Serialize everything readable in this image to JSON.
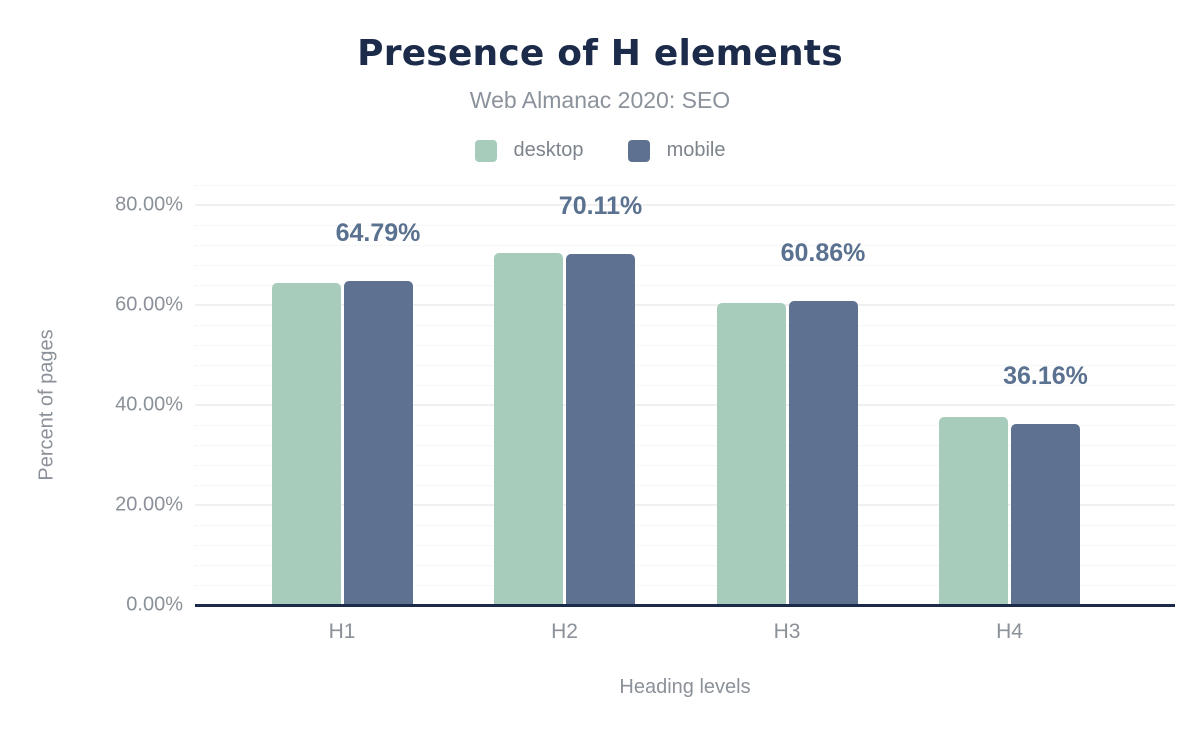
{
  "chart_data": {
    "type": "bar",
    "title": "Presence of H elements",
    "subtitle": "Web Almanac 2020: SEO",
    "categories": [
      "H1",
      "H2",
      "H3",
      "H4"
    ],
    "series": [
      {
        "name": "desktop",
        "color": "#a8ccbb",
        "values": [
          64.5,
          70.5,
          60.4,
          37.7
        ]
      },
      {
        "name": "mobile",
        "color": "#5f7190",
        "values": [
          64.79,
          70.11,
          60.86,
          36.16
        ]
      }
    ],
    "data_labels": [
      "64.79%",
      "70.11%",
      "60.86%",
      "36.16%"
    ],
    "xlabel": "Heading levels",
    "ylabel": "Percent of pages",
    "y_ticks": [
      "0.00%",
      "20.00%",
      "40.00%",
      "60.00%",
      "80.00%"
    ],
    "y_tick_values": [
      0,
      20,
      40,
      60,
      80
    ],
    "ylim": [
      0,
      84
    ],
    "grid": "horizontal major every 20%, faint dotted minor every 4%",
    "legend_position": "top"
  },
  "colors": {
    "title": "#1c2b4a",
    "subtitle": "#8b929b",
    "axis_text": "#8b9199",
    "data_label": "#5a7190",
    "axis_line": "#1b2b49",
    "grid_major": "#f0f0f1",
    "grid_minor": "#edeff1",
    "background": "#ffffff"
  }
}
